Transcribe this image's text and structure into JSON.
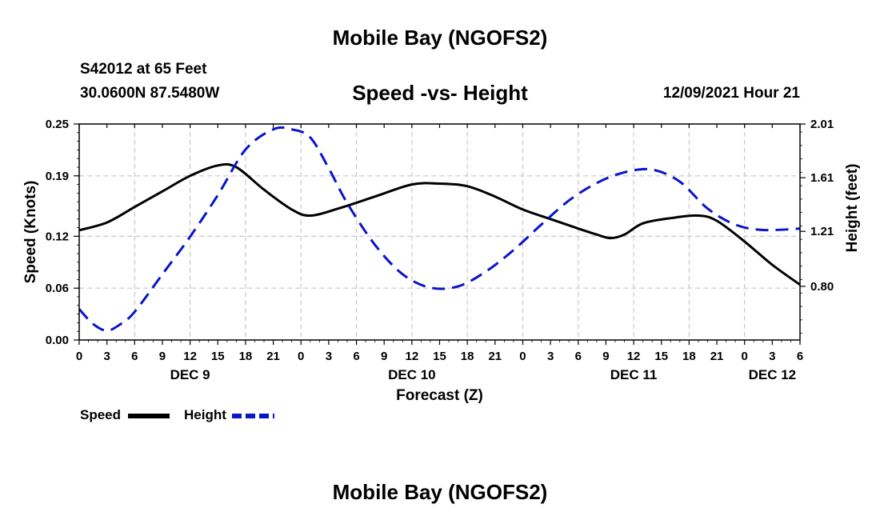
{
  "header": {
    "title": "Mobile Bay (NGOFS2)",
    "station": "S42012 at 65 Feet",
    "coords": "30.0600N  87.5480W",
    "subtitle": "Speed -vs- Height",
    "datetime": "12/09/2021 Hour 21"
  },
  "footer": {
    "title": "Mobile Bay (NGOFS2)"
  },
  "legend": {
    "speed_label": "Speed",
    "height_label": "Height"
  },
  "colors": {
    "speed": "#000000",
    "height": "#0a14c8",
    "grid": "#c8c8c8"
  },
  "chart_data": {
    "type": "line",
    "title": "Speed -vs- Height",
    "xlabel": "Forecast (Z)",
    "ylabel": "Speed (Knots)",
    "y2label": "Height (feet)",
    "xlim": [
      0,
      78
    ],
    "ylim": [
      0,
      0.25
    ],
    "y2lim": [
      0.4,
      2.01
    ],
    "x_tick_labels": [
      "0",
      "3",
      "6",
      "9",
      "12",
      "15",
      "18",
      "21",
      "0",
      "3",
      "6",
      "9",
      "12",
      "15",
      "18",
      "21",
      "0",
      "3",
      "6",
      "9",
      "12",
      "15",
      "18",
      "21",
      "0",
      "3",
      "6"
    ],
    "y_ticks": [
      0.0,
      0.06,
      0.12,
      0.19,
      0.25
    ],
    "y_tick_labels": [
      "0.00",
      "0.06",
      "0.12",
      "0.19",
      "0.25"
    ],
    "y2_ticks": [
      0.8,
      1.21,
      1.61,
      2.01
    ],
    "y2_tick_labels": [
      "0.80",
      "1.21",
      "1.61",
      "2.01"
    ],
    "day_labels": [
      {
        "text": "DEC 9",
        "hour": 12
      },
      {
        "text": "DEC 10",
        "hour": 36
      },
      {
        "text": "DEC 11",
        "hour": 60
      },
      {
        "text": "DEC 12",
        "hour": 75
      }
    ],
    "series": [
      {
        "name": "Speed",
        "axis": "left",
        "style": "solid",
        "x": [
          0,
          3,
          6,
          9,
          12,
          15,
          17,
          20,
          23,
          25,
          28,
          32,
          36,
          39,
          42,
          45,
          48,
          51,
          54,
          56,
          57.5,
          59,
          61,
          64,
          67,
          69,
          72,
          75,
          78
        ],
        "values": [
          0.127,
          0.136,
          0.154,
          0.172,
          0.19,
          0.202,
          0.2,
          0.174,
          0.151,
          0.144,
          0.152,
          0.166,
          0.18,
          0.181,
          0.178,
          0.166,
          0.151,
          0.14,
          0.129,
          0.122,
          0.118,
          0.122,
          0.135,
          0.141,
          0.144,
          0.138,
          0.114,
          0.087,
          0.064
        ]
      },
      {
        "name": "Height",
        "axis": "right",
        "style": "dashed",
        "x": [
          0,
          1.5,
          3,
          4.5,
          6,
          9,
          12,
          15,
          18,
          21,
          23,
          25,
          27,
          29,
          32,
          35,
          38,
          41,
          44,
          47,
          50,
          53,
          56,
          59,
          62,
          65,
          68,
          71,
          74,
          78
        ],
        "values": [
          0.63,
          0.52,
          0.47,
          0.52,
          0.61,
          0.89,
          1.17,
          1.48,
          1.82,
          1.97,
          1.97,
          1.91,
          1.68,
          1.42,
          1.11,
          0.89,
          0.79,
          0.8,
          0.91,
          1.07,
          1.26,
          1.44,
          1.57,
          1.65,
          1.67,
          1.58,
          1.38,
          1.26,
          1.22,
          1.23
        ]
      }
    ]
  }
}
